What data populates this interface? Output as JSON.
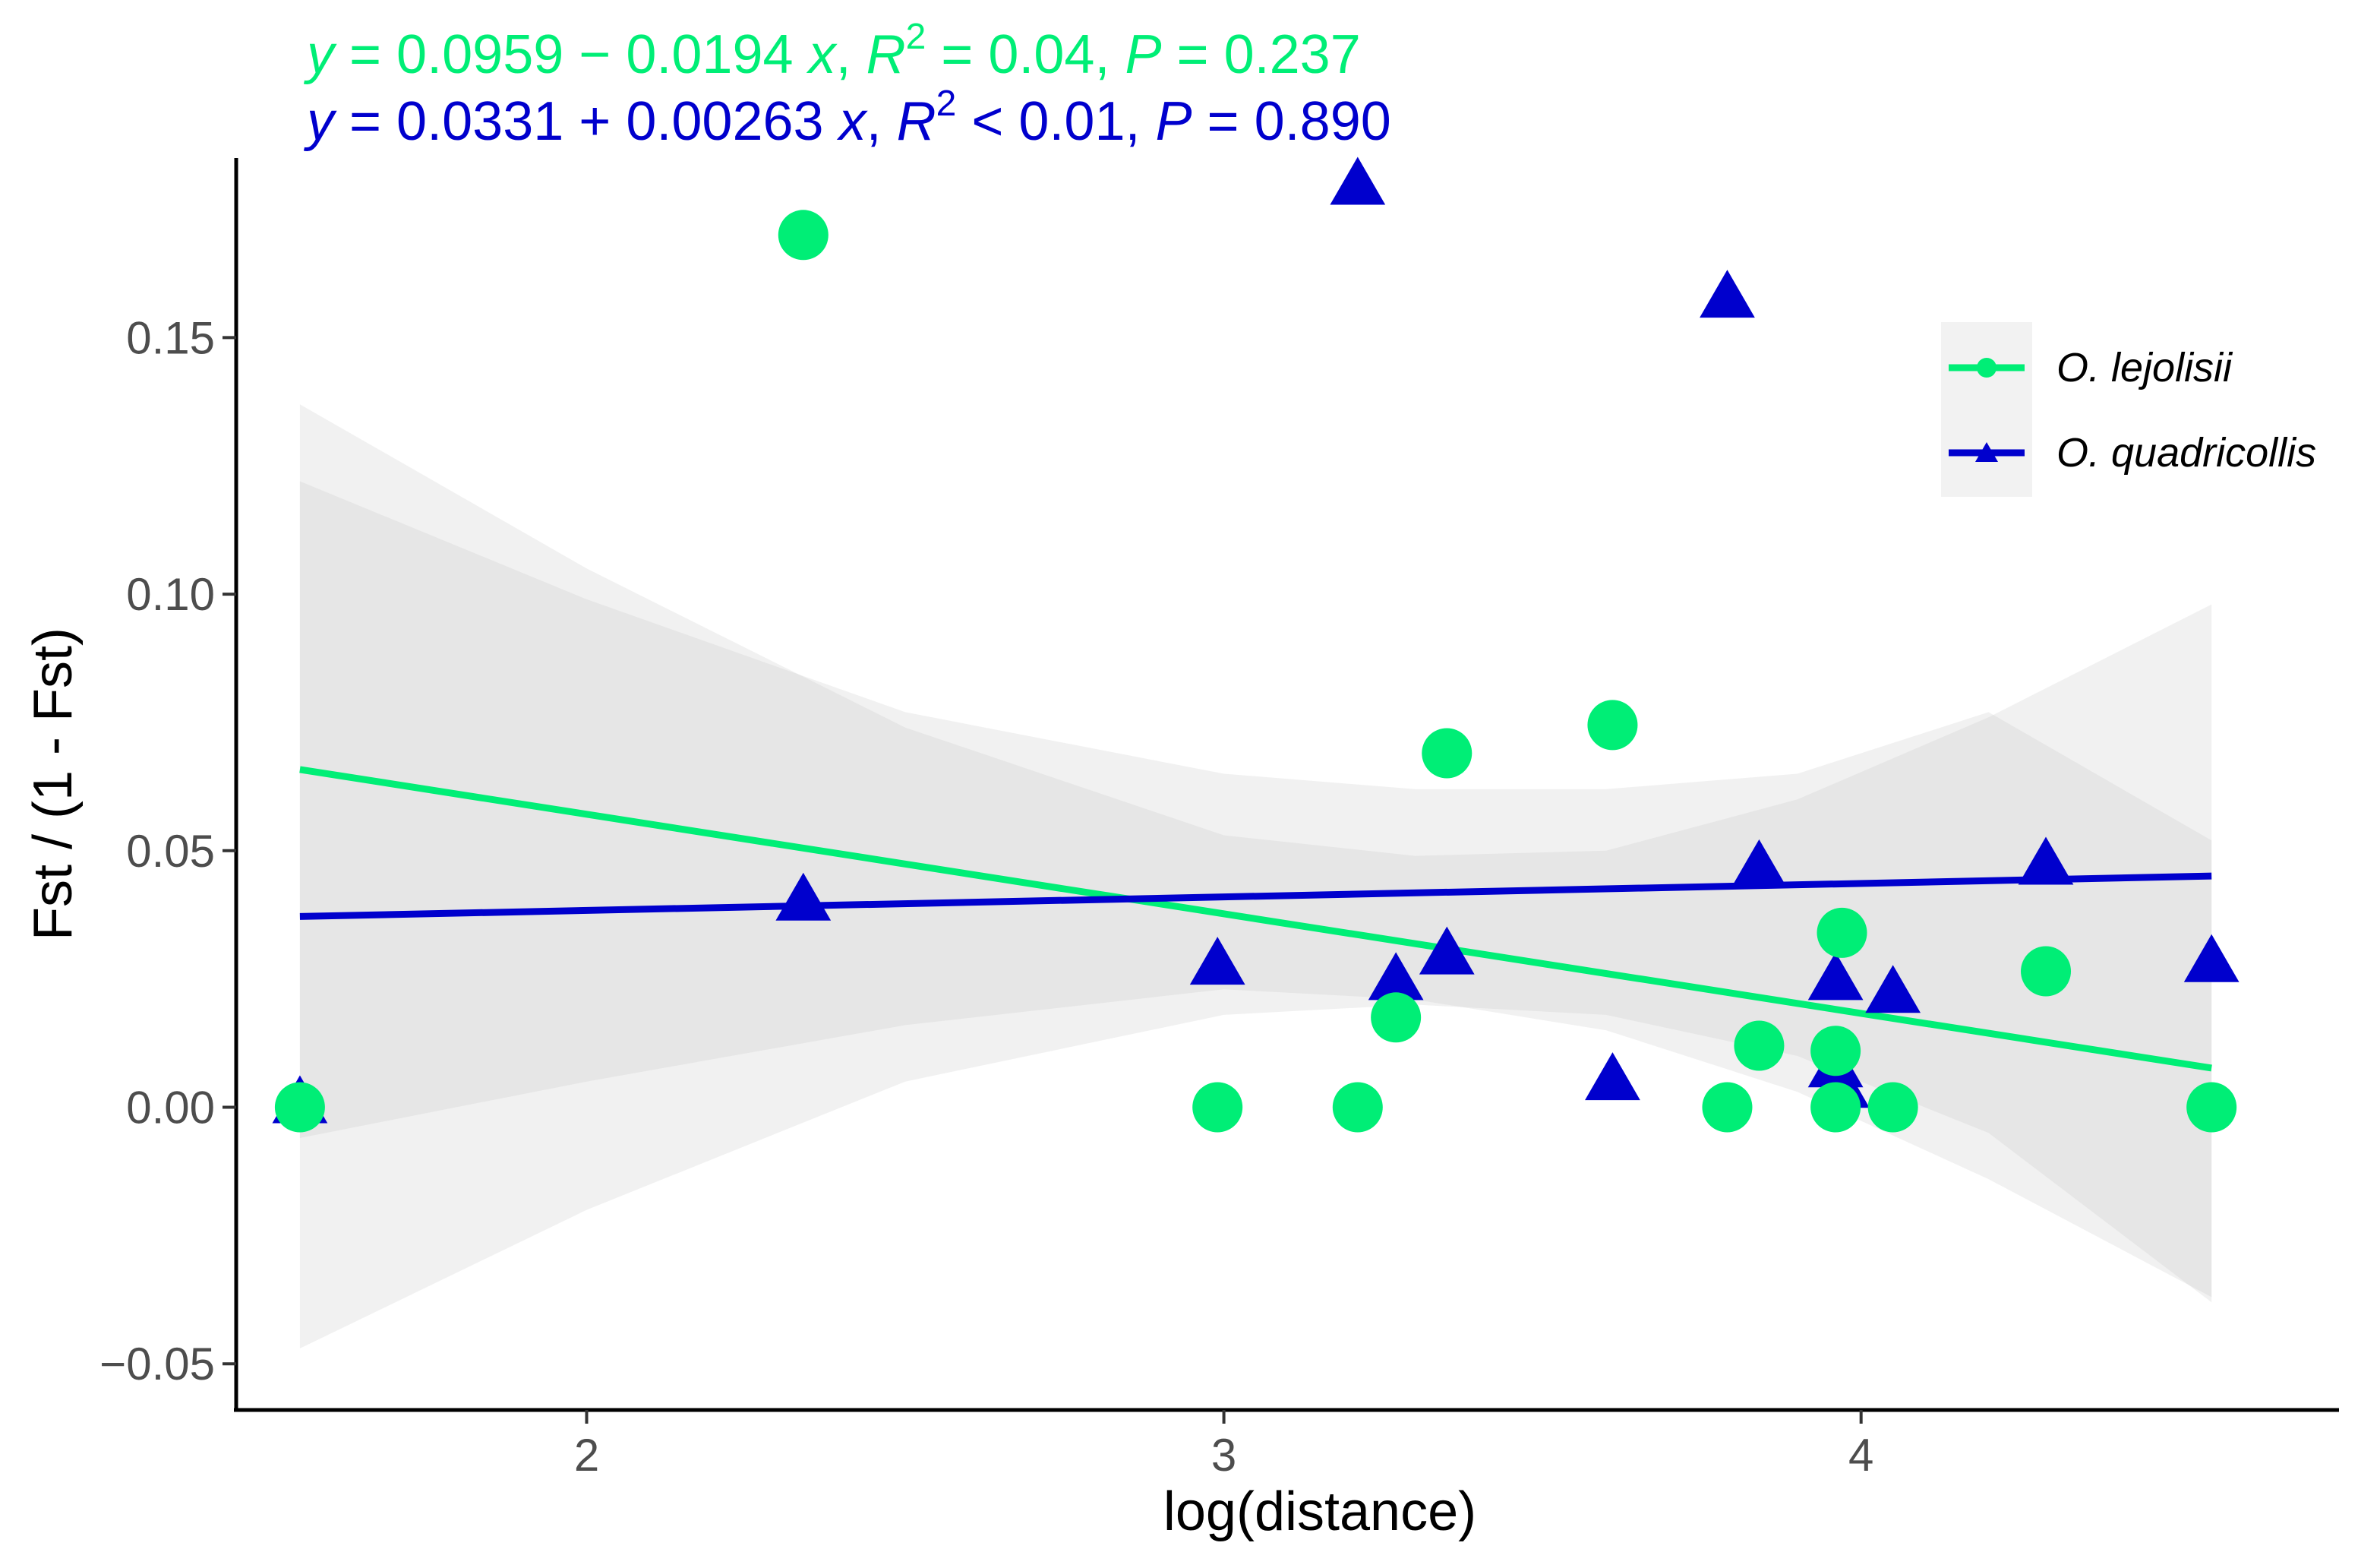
{
  "chart_data": {
    "type": "scatter",
    "title": "",
    "xlabel": "log(distance)",
    "ylabel": "Fst / (1 - Fst)",
    "xlim": [
      1.45,
      4.75
    ],
    "ylim": [
      -0.059,
      0.185
    ],
    "x_ticks": [
      2,
      3,
      4
    ],
    "x_tick_labels": [
      "2",
      "3",
      "4"
    ],
    "y_ticks": [
      -0.05,
      0.0,
      0.05,
      0.1,
      0.15
    ],
    "y_tick_labels": [
      "−0.05",
      "0.00",
      "0.05",
      "0.10",
      "0.15"
    ],
    "grid": false,
    "legend_position": "top-right",
    "series": [
      {
        "name": "O. lejolisii",
        "marker": "circle",
        "color": "#00EE76",
        "fit": {
          "intercept": 0.0959,
          "slope": -0.0194,
          "x_range": [
            1.55,
            4.55
          ]
        },
        "ci_band": {
          "x": [
            1.55,
            2.0,
            2.5,
            3.0,
            3.3,
            3.6,
            3.9,
            4.2,
            4.55
          ],
          "lower": [
            -0.006,
            0.005,
            0.016,
            0.023,
            0.021,
            0.015,
            0.003,
            -0.014,
            -0.037
          ],
          "upper": [
            0.137,
            0.105,
            0.074,
            0.053,
            0.049,
            0.05,
            0.06,
            0.076,
            0.098
          ]
        },
        "equation": {
          "y": "y",
          "rhs": " = 0.0959 − 0.0194 ",
          "x": "x",
          "r_label": "R",
          "r_exp": "2",
          "r_rhs": " = 0.04, ",
          "p_label": "P",
          "p_rhs": " = 0.237"
        },
        "points": [
          {
            "x": 1.55,
            "y": 0.0
          },
          {
            "x": 2.34,
            "y": 0.17
          },
          {
            "x": 2.99,
            "y": 0.0
          },
          {
            "x": 3.21,
            "y": 0.0
          },
          {
            "x": 3.27,
            "y": 0.0175
          },
          {
            "x": 3.35,
            "y": 0.069
          },
          {
            "x": 3.61,
            "y": 0.0745
          },
          {
            "x": 3.79,
            "y": 0.0
          },
          {
            "x": 3.84,
            "y": 0.012
          },
          {
            "x": 3.96,
            "y": 0.0
          },
          {
            "x": 3.96,
            "y": 0.011
          },
          {
            "x": 3.97,
            "y": 0.034
          },
          {
            "x": 4.05,
            "y": 0.0
          },
          {
            "x": 4.29,
            "y": 0.0265
          },
          {
            "x": 4.55,
            "y": 0.0
          }
        ]
      },
      {
        "name": "O. quadricollis",
        "marker": "triangle",
        "color": "#0000CD",
        "fit": {
          "intercept": 0.0331,
          "slope": 0.00263,
          "x_range": [
            1.55,
            4.55
          ]
        },
        "ci_band": {
          "x": [
            1.55,
            2.0,
            2.5,
            3.0,
            3.3,
            3.6,
            3.9,
            4.2,
            4.55
          ],
          "lower": [
            -0.047,
            -0.02,
            0.005,
            0.018,
            0.02,
            0.018,
            0.01,
            -0.005,
            -0.038
          ],
          "upper": [
            0.122,
            0.099,
            0.077,
            0.065,
            0.062,
            0.062,
            0.065,
            0.077,
            0.052
          ]
        },
        "equation": {
          "y": "y",
          "rhs": " = 0.0331 + 0.00263 ",
          "x": "x",
          "r_label": "R",
          "r_exp": "2",
          "r_rhs": " < 0.01, ",
          "p_label": "P",
          "p_rhs": " = 0.890"
        },
        "points": [
          {
            "x": 1.55,
            "y": 0.0
          },
          {
            "x": 2.34,
            "y": 0.0395
          },
          {
            "x": 2.99,
            "y": 0.027
          },
          {
            "x": 3.21,
            "y": 0.179
          },
          {
            "x": 3.27,
            "y": 0.024
          },
          {
            "x": 3.35,
            "y": 0.029
          },
          {
            "x": 3.61,
            "y": 0.0045
          },
          {
            "x": 3.79,
            "y": 0.157
          },
          {
            "x": 3.84,
            "y": 0.046
          },
          {
            "x": 3.96,
            "y": 0.024
          },
          {
            "x": 3.96,
            "y": 0.007
          },
          {
            "x": 3.97,
            "y": 0.003
          },
          {
            "x": 4.05,
            "y": 0.0215
          },
          {
            "x": 4.29,
            "y": 0.0465
          },
          {
            "x": 4.55,
            "y": 0.0275
          }
        ]
      }
    ]
  },
  "colors": {
    "lejolisii": "#00EE76",
    "quadricollis": "#0000CD",
    "band": "#BEBEBE",
    "legend_bg": "#F2F2F2",
    "axis": "#000000"
  }
}
